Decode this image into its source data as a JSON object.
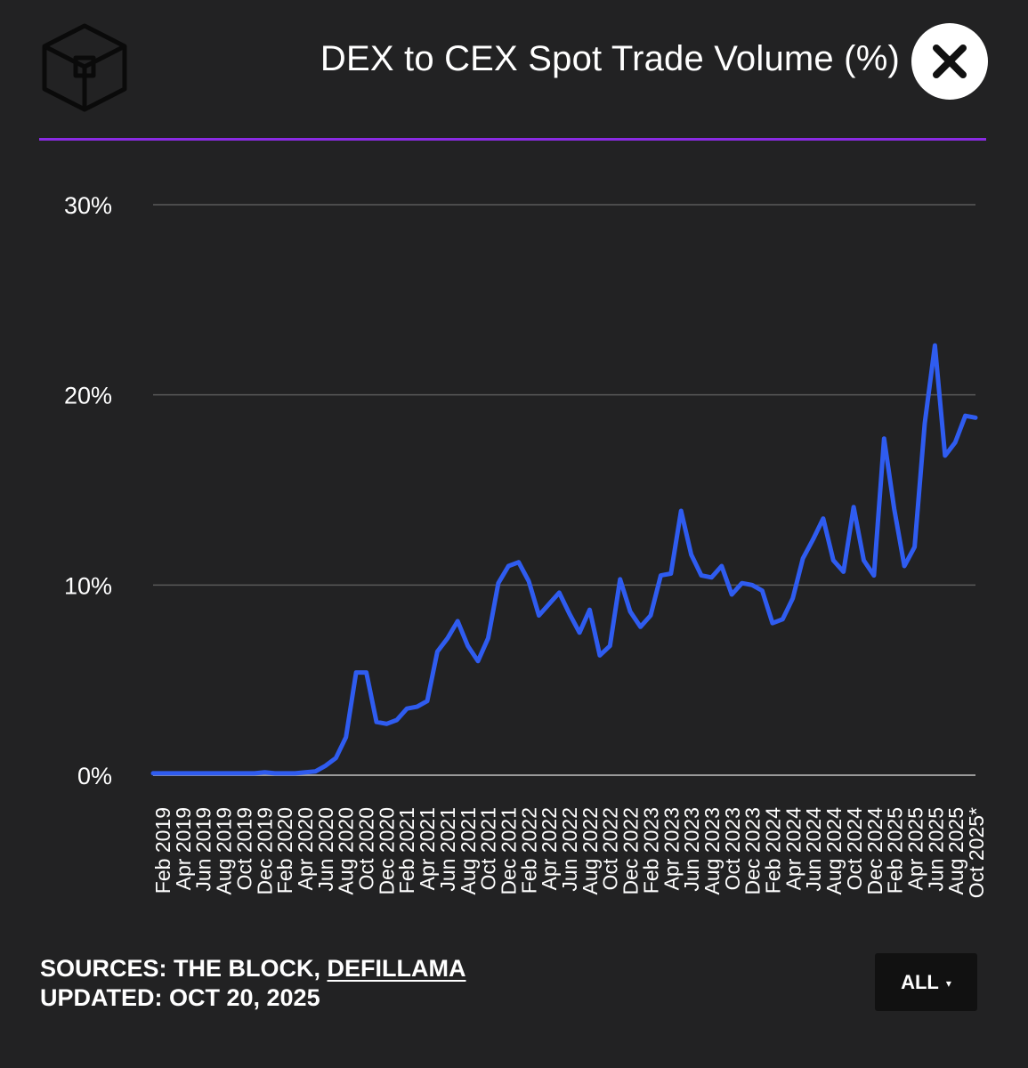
{
  "header": {
    "title": "DEX to CEX Spot Trade Volume (%)"
  },
  "footer": {
    "sources_prefix": "SOURCES: THE BLOCK, ",
    "sources_link": "DEFILLAMA",
    "updated": "UPDATED: OCT 20, 2025"
  },
  "range_select": {
    "value": "ALL",
    "caret": "▾"
  },
  "colors": {
    "background": "#222223",
    "accent_divider": "#8a2be2",
    "line": "#2f5cf0",
    "grid": "#5a5a5a"
  },
  "icons": {
    "logo": "the-block-cube-icon",
    "close": "close-icon"
  },
  "chart_data": {
    "type": "line",
    "title": "DEX to CEX Spot Trade Volume (%)",
    "xlabel": "",
    "ylabel": "",
    "ylim": [
      0,
      30
    ],
    "yticks": [
      {
        "value": 0,
        "label": "0%"
      },
      {
        "value": 10,
        "label": "10%"
      },
      {
        "value": 20,
        "label": "20%"
      },
      {
        "value": 30,
        "label": "30%"
      }
    ],
    "grid": true,
    "legend": "none",
    "x_tick_labels": [
      "Feb 2019",
      "Apr 2019",
      "Jun 2019",
      "Aug 2019",
      "Oct 2019",
      "Dec 2019",
      "Feb 2020",
      "Apr 2020",
      "Jun 2020",
      "Aug 2020",
      "Oct 2020",
      "Dec 2020",
      "Feb 2021",
      "Apr 2021",
      "Jun 2021",
      "Aug 2021",
      "Oct 2021",
      "Dec 2021",
      "Feb 2022",
      "Apr 2022",
      "Jun 2022",
      "Aug 2022",
      "Oct 2022",
      "Dec 2022",
      "Feb 2023",
      "Apr 2023",
      "Jun 2023",
      "Aug 2023",
      "Oct 2023",
      "Dec 2023",
      "Feb 2024",
      "Apr 2024",
      "Jun 2024",
      "Aug 2024",
      "Oct 2024",
      "Dec 2024",
      "Feb 2025",
      "Apr 2025",
      "Jun 2025",
      "Aug 2025",
      "Oct 2025*"
    ],
    "series": [
      {
        "values": [
          0.1,
          0.1,
          0.1,
          0.1,
          0.1,
          0.1,
          0.1,
          0.1,
          0.1,
          0.1,
          0.1,
          0.15,
          0.1,
          0.1,
          0.1,
          0.15,
          0.2,
          0.5,
          0.9,
          2.0,
          5.4,
          5.4,
          2.8,
          2.7,
          2.9,
          3.5,
          3.6,
          3.9,
          6.5,
          7.2,
          8.1,
          6.8,
          6.0,
          7.2,
          10.1,
          11.0,
          11.2,
          10.2,
          8.4,
          9.0,
          9.6,
          8.5,
          7.5,
          8.7,
          6.3,
          6.8,
          10.3,
          8.6,
          7.8,
          8.4,
          10.5,
          10.6,
          13.9,
          11.6,
          10.5,
          10.4,
          11.0,
          9.5,
          10.1,
          10.0,
          9.7,
          8.0,
          8.2,
          9.3,
          11.4,
          12.4,
          13.5,
          11.3,
          10.7,
          14.1,
          11.3,
          10.5,
          17.7,
          14.0,
          11.0,
          12.0,
          18.5,
          22.6,
          16.8,
          17.5,
          18.9,
          18.8
        ]
      }
    ]
  }
}
